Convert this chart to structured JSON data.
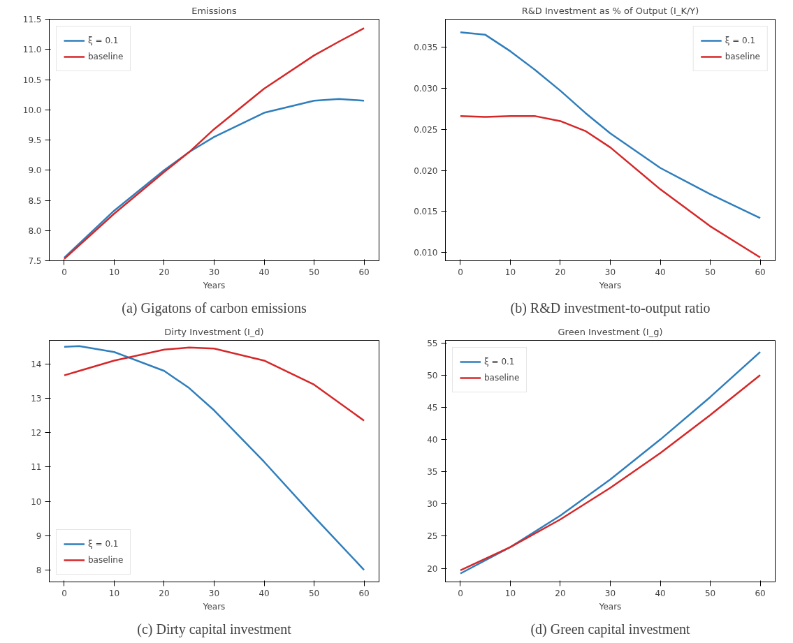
{
  "chart_data": [
    {
      "type": "line",
      "title": "Emissions",
      "xlabel": "Years",
      "annotations": [
        "(a) Gigatons of carbon emissions"
      ],
      "grid": false,
      "legend": "top left",
      "xlim": [
        -3,
        63
      ],
      "xticks": [
        0,
        10,
        20,
        30,
        40,
        50,
        60
      ],
      "ylim": [
        7.5,
        11.5
      ],
      "yticks": [
        7.5,
        {
          "value": 8,
          "label": "8.0"
        },
        8.5,
        {
          "value": 9,
          "label": "9.0"
        },
        9.5,
        {
          "value": 10,
          "label": "10.0"
        },
        10.5,
        {
          "value": 11,
          "label": "11.0"
        },
        11.5
      ],
      "x": [
        0,
        10,
        20,
        25,
        30,
        40,
        50,
        55,
        60
      ],
      "series": [
        {
          "name": "ξ = 0.1",
          "color": "#2f7ebc",
          "values": [
            7.55,
            8.33,
            9.0,
            9.3,
            9.55,
            9.95,
            10.15,
            10.18,
            10.15
          ]
        },
        {
          "name": "baseline",
          "color": "#d62728",
          "values": [
            7.53,
            8.28,
            8.97,
            9.3,
            9.68,
            10.35,
            10.9,
            11.13,
            11.35
          ]
        }
      ]
    },
    {
      "type": "line",
      "title": "R&D Investment as % of Output (I_K/Y)",
      "xlabel": "Years",
      "annotations": [
        "(b) R&D investment-to-output ratio"
      ],
      "grid": false,
      "legend": "top right",
      "xlim": [
        -3,
        63
      ],
      "xticks": [
        0,
        10,
        20,
        30,
        40,
        50,
        60
      ],
      "ylim": [
        0.009,
        0.0384
      ],
      "yticks": [
        {
          "value": 0.01,
          "label": "0.010"
        },
        0.015,
        {
          "value": 0.02,
          "label": "0.020"
        },
        0.025,
        {
          "value": 0.03,
          "label": "0.030"
        },
        0.035
      ],
      "x": [
        0,
        5,
        10,
        15,
        20,
        25,
        30,
        40,
        50,
        60
      ],
      "series": [
        {
          "name": "ξ = 0.1",
          "color": "#2f7ebc",
          "values": [
            0.0368,
            0.0365,
            0.0345,
            0.0322,
            0.0297,
            0.027,
            0.0245,
            0.0203,
            0.0171,
            0.0142
          ]
        },
        {
          "name": "baseline",
          "color": "#d62728",
          "values": [
            0.0266,
            0.0265,
            0.0266,
            0.0266,
            0.026,
            0.0248,
            0.0228,
            0.0177,
            0.0132,
            0.0094
          ]
        }
      ]
    },
    {
      "type": "line",
      "title": "Dirty Investment (I_d)",
      "xlabel": "Years",
      "annotations": [
        "(c) Dirty capital investment"
      ],
      "grid": false,
      "legend": "bottom left",
      "xlim": [
        -3,
        63
      ],
      "xticks": [
        0,
        10,
        20,
        30,
        40,
        50,
        60
      ],
      "ylim": [
        7.65,
        14.69
      ],
      "yticks": [
        8,
        9,
        10,
        11,
        12,
        13,
        14
      ],
      "x": [
        0,
        3,
        10,
        20,
        25,
        30,
        40,
        50,
        60
      ],
      "series": [
        {
          "name": "ξ = 0.1",
          "color": "#2f7ebc",
          "values": [
            14.5,
            14.52,
            14.35,
            13.8,
            13.3,
            12.65,
            11.15,
            9.55,
            8.0
          ]
        },
        {
          "name": "baseline",
          "color": "#d62728",
          "values": [
            13.67,
            13.8,
            14.1,
            14.42,
            14.48,
            14.45,
            14.1,
            13.4,
            12.35
          ]
        }
      ]
    },
    {
      "type": "line",
      "title": "Green Investment (I_g)",
      "xlabel": "Years",
      "annotations": [
        "(d) Green capital investment"
      ],
      "grid": false,
      "legend": "top left",
      "xlim": [
        -3,
        63
      ],
      "xticks": [
        0,
        10,
        20,
        30,
        40,
        50,
        60
      ],
      "ylim": [
        17.9,
        55.4
      ],
      "yticks": [
        20,
        25,
        30,
        35,
        40,
        45,
        50,
        55
      ],
      "x": [
        0,
        10,
        20,
        30,
        40,
        50,
        60
      ],
      "series": [
        {
          "name": "ξ = 0.1",
          "color": "#2f7ebc",
          "values": [
            19.2,
            23.3,
            28.2,
            33.8,
            40.0,
            46.6,
            53.6
          ]
        },
        {
          "name": "baseline",
          "color": "#d62728",
          "values": [
            19.7,
            23.3,
            27.6,
            32.5,
            37.9,
            43.8,
            50.0
          ]
        }
      ]
    }
  ]
}
